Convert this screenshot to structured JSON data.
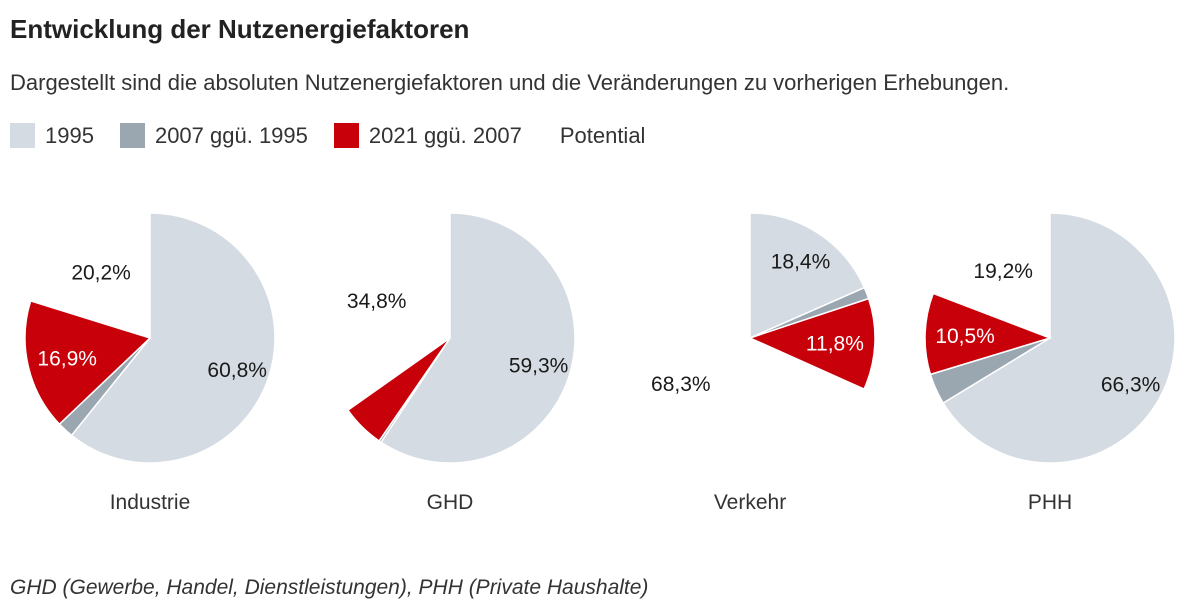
{
  "title": "Entwicklung der Nutzenergiefaktoren",
  "subtitle": "Dargestellt sind die absoluten Nutzenergiefaktoren und die Veränderungen zu vorherigen Erhebungen.",
  "legend": [
    {
      "label": "1995",
      "color": "#d4dbe2"
    },
    {
      "label": "2007 ggü. 1995",
      "color": "#9aa6b0"
    },
    {
      "label": "2021 ggü. 2007",
      "color": "#c8000a"
    },
    {
      "label": "Potential",
      "color": ""
    }
  ],
  "footnote": "GHD (Gewerbe, Handel, Dienstleistungen), PHH (Private Haushalte)",
  "colors": {
    "base": "#d4dbe2",
    "change_2007": "#9aa6b0",
    "change_2021": "#c8000a"
  },
  "chart_data": {
    "type": "pie",
    "series_names": [
      "1995",
      "2007 ggü. 1995",
      "2021 ggü. 2007",
      "Potential"
    ],
    "charts": [
      {
        "category": "Industrie",
        "values": [
          60.8,
          2.1,
          16.9,
          20.2
        ],
        "labels": [
          "60,8%",
          "",
          "16,9%",
          "20,2%"
        ]
      },
      {
        "category": "GHD",
        "values": [
          59.3,
          0.3,
          5.6,
          34.8
        ],
        "labels": [
          "59,3%",
          "",
          "",
          "34,8%"
        ]
      },
      {
        "category": "Verkehr",
        "values": [
          18.4,
          1.5,
          11.8,
          68.3
        ],
        "labels": [
          "18,4%",
          "",
          "11,8%",
          "68,3%"
        ]
      },
      {
        "category": "PHH",
        "values": [
          66.3,
          4.0,
          10.5,
          19.2
        ],
        "labels": [
          "66,3%",
          "",
          "10,5%",
          "19,2%"
        ]
      }
    ]
  }
}
